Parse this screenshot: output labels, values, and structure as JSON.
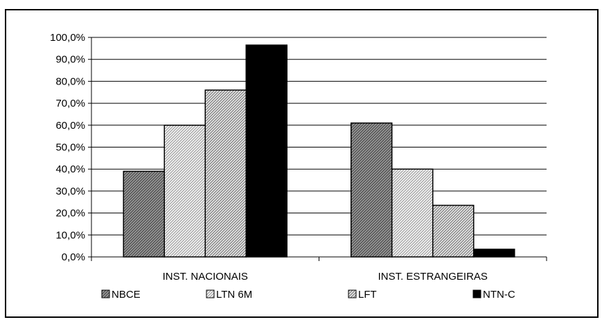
{
  "chart_data": {
    "type": "bar",
    "categories": [
      "INST. NACIONAIS",
      "INST. ESTRANGEIRAS"
    ],
    "series": [
      {
        "name": "NBCE",
        "values": [
          39.0,
          61.0
        ],
        "color": "#7f7f7f",
        "pattern": "dark-diagonal"
      },
      {
        "name": "LTN 6M",
        "values": [
          60.0,
          40.0
        ],
        "color": "#d9d9d9",
        "pattern": "light-diagonal"
      },
      {
        "name": "LFT",
        "values": [
          76.0,
          23.5
        ],
        "color": "#c8c8c8",
        "pattern": "light-diagonal"
      },
      {
        "name": "NTN-C",
        "values": [
          96.5,
          3.5
        ],
        "color": "#000000",
        "pattern": "solid"
      }
    ],
    "ylim": [
      0,
      100
    ],
    "yticks": [
      0,
      10,
      20,
      30,
      40,
      50,
      60,
      70,
      80,
      90,
      100
    ],
    "ytick_labels": [
      "0,0%",
      "10,0%",
      "20,0%",
      "30,0%",
      "40,0%",
      "50,0%",
      "60,0%",
      "70,0%",
      "80,0%",
      "90,0%",
      "100,0%"
    ],
    "grid": true,
    "legend_position": "bottom",
    "title": "",
    "xlabel": "",
    "ylabel": ""
  }
}
